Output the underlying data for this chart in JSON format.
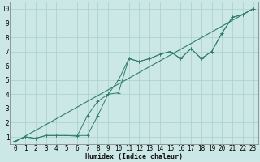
{
  "xlabel": "Humidex (Indice chaleur)",
  "ylabel": "",
  "xlim": [
    -0.5,
    23.5
  ],
  "ylim": [
    0.5,
    10.5
  ],
  "xticks": [
    0,
    1,
    2,
    3,
    4,
    5,
    6,
    7,
    8,
    9,
    10,
    11,
    12,
    13,
    14,
    15,
    16,
    17,
    18,
    19,
    20,
    21,
    22,
    23
  ],
  "yticks": [
    1,
    2,
    3,
    4,
    5,
    6,
    7,
    8,
    9,
    10
  ],
  "bg_color": "#cce8e6",
  "grid_color": "#aacfcc",
  "line_color": "#2e7d6e",
  "series1_x": [
    0,
    1,
    2,
    3,
    4,
    5,
    6,
    7,
    8,
    9,
    10,
    11,
    12,
    13,
    14,
    15,
    16,
    17,
    18,
    19,
    20,
    21,
    22,
    23
  ],
  "series1_y": [
    0.7,
    1.0,
    0.9,
    1.1,
    1.1,
    1.1,
    1.1,
    1.1,
    2.5,
    4.0,
    5.0,
    6.5,
    6.3,
    6.5,
    6.8,
    7.0,
    6.5,
    7.2,
    6.5,
    7.0,
    8.3,
    9.4,
    9.6,
    10.0
  ],
  "series2_x": [
    0,
    23
  ],
  "series2_y": [
    0.65,
    10.0
  ],
  "series3_x": [
    0,
    1,
    2,
    3,
    4,
    5,
    6,
    7,
    8,
    9,
    10,
    11,
    12,
    13,
    14,
    15,
    16,
    17,
    18,
    19,
    20,
    21,
    22,
    23
  ],
  "series3_y": [
    0.7,
    1.0,
    0.9,
    1.1,
    1.1,
    1.1,
    1.05,
    2.5,
    3.5,
    4.0,
    4.1,
    6.5,
    6.3,
    6.5,
    6.8,
    7.0,
    6.5,
    7.2,
    6.5,
    7.0,
    8.3,
    9.4,
    9.6,
    10.0
  ],
  "tick_fontsize": 5.5,
  "xlabel_fontsize": 6.0
}
